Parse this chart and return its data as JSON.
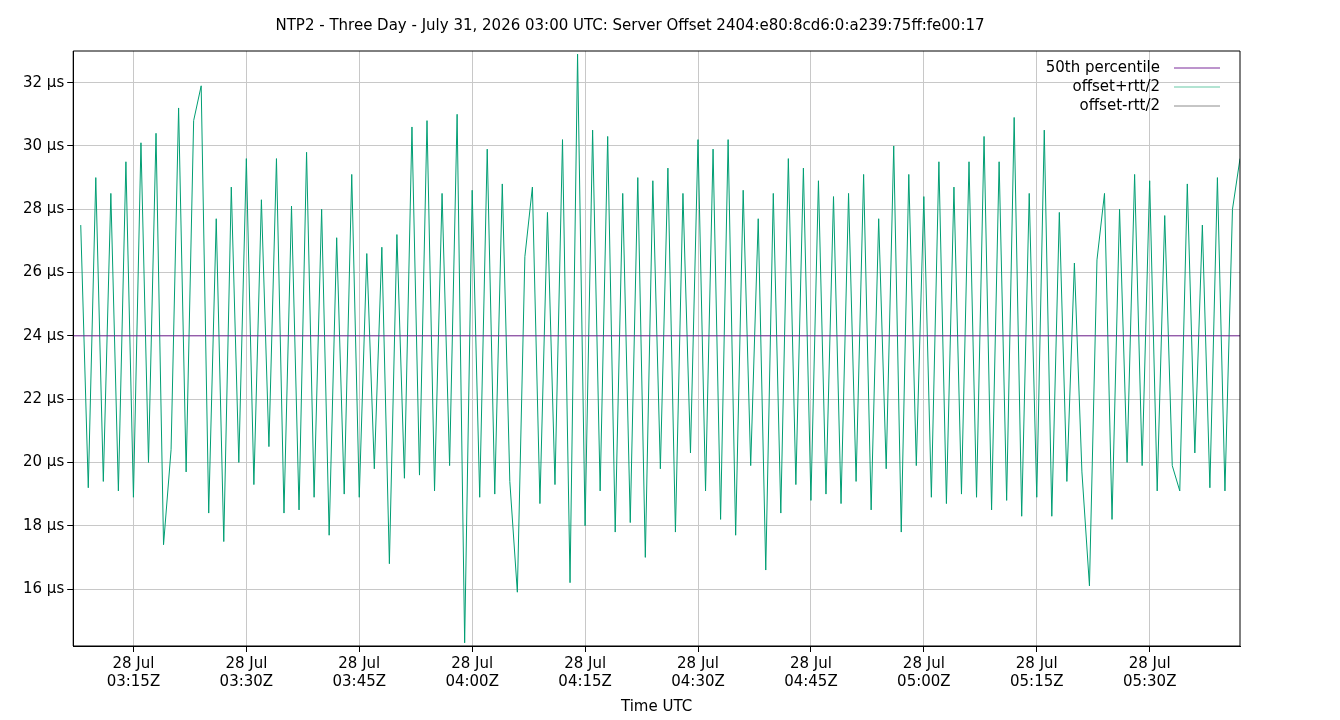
{
  "chart_data": {
    "type": "line",
    "title": "NTP2 - Three Day - July 31, 2026 03:00 UTC: Server Offset 2404:e80:8cd6:0:a239:75ff:fe00:17",
    "xlabel": "Time UTC",
    "xlim": [
      "2026-07-28T03:07",
      "2026-07-28T05:42"
    ],
    "xticks": [
      {
        "value": "2026-07-28T03:15",
        "label": "28 Jul\n03:15Z"
      },
      {
        "value": "2026-07-28T03:30",
        "label": "28 Jul\n03:30Z"
      },
      {
        "value": "2026-07-28T03:45",
        "label": "28 Jul\n03:45Z"
      },
      {
        "value": "2026-07-28T04:00",
        "label": "28 Jul\n04:00Z"
      },
      {
        "value": "2026-07-28T04:15",
        "label": "28 Jul\n04:15Z"
      },
      {
        "value": "2026-07-28T04:30",
        "label": "28 Jul\n04:30Z"
      },
      {
        "value": "2026-07-28T04:45",
        "label": "28 Jul\n04:45Z"
      },
      {
        "value": "2026-07-28T05:00",
        "label": "28 Jul\n05:00Z"
      },
      {
        "value": "2026-07-28T05:15",
        "label": "28 Jul\n05:15Z"
      },
      {
        "value": "2026-07-28T05:30",
        "label": "28 Jul\n05:30Z"
      }
    ],
    "ylim": [
      14.2,
      33
    ],
    "yticks": [
      {
        "value": 16,
        "label": "16 µs"
      },
      {
        "value": 18,
        "label": "18 µs"
      },
      {
        "value": 20,
        "label": "20 µs"
      },
      {
        "value": 22,
        "label": "22 µs"
      },
      {
        "value": 24,
        "label": "24 µs"
      },
      {
        "value": 26,
        "label": "26 µs"
      },
      {
        "value": 28,
        "label": "28 µs"
      },
      {
        "value": 30,
        "label": "30 µs"
      },
      {
        "value": 32,
        "label": "32 µs"
      }
    ],
    "grid": true,
    "legend": "top right",
    "marker": "none",
    "line_style": "solid",
    "x": [
      "2026-07-28T03:08",
      "2026-07-28T03:09",
      "2026-07-28T03:10",
      "2026-07-28T03:11",
      "2026-07-28T03:12",
      "2026-07-28T03:13",
      "2026-07-28T03:14",
      "2026-07-28T03:15",
      "2026-07-28T03:16",
      "2026-07-28T03:17",
      "2026-07-28T03:18",
      "2026-07-28T03:19",
      "2026-07-28T03:20",
      "2026-07-28T03:21",
      "2026-07-28T03:22",
      "2026-07-28T03:23",
      "2026-07-28T03:24",
      "2026-07-28T03:25",
      "2026-07-28T03:26",
      "2026-07-28T03:27",
      "2026-07-28T03:28",
      "2026-07-28T03:29",
      "2026-07-28T03:30",
      "2026-07-28T03:31",
      "2026-07-28T03:32",
      "2026-07-28T03:33",
      "2026-07-28T03:34",
      "2026-07-28T03:35",
      "2026-07-28T03:36",
      "2026-07-28T03:37",
      "2026-07-28T03:38",
      "2026-07-28T03:39",
      "2026-07-28T03:40",
      "2026-07-28T03:41",
      "2026-07-28T03:42",
      "2026-07-28T03:43",
      "2026-07-28T03:44",
      "2026-07-28T03:45",
      "2026-07-28T03:46",
      "2026-07-28T03:47",
      "2026-07-28T03:48",
      "2026-07-28T03:49",
      "2026-07-28T03:50",
      "2026-07-28T03:51",
      "2026-07-28T03:52",
      "2026-07-28T03:53",
      "2026-07-28T03:54",
      "2026-07-28T03:55",
      "2026-07-28T03:56",
      "2026-07-28T03:57",
      "2026-07-28T03:58",
      "2026-07-28T03:59",
      "2026-07-28T04:00",
      "2026-07-28T04:01",
      "2026-07-28T04:02",
      "2026-07-28T04:03",
      "2026-07-28T04:04",
      "2026-07-28T04:05",
      "2026-07-28T04:06",
      "2026-07-28T04:07",
      "2026-07-28T04:08",
      "2026-07-28T04:09",
      "2026-07-28T04:10",
      "2026-07-28T04:11",
      "2026-07-28T04:12",
      "2026-07-28T04:13",
      "2026-07-28T04:14",
      "2026-07-28T04:15",
      "2026-07-28T04:16",
      "2026-07-28T04:17",
      "2026-07-28T04:18",
      "2026-07-28T04:19",
      "2026-07-28T04:20",
      "2026-07-28T04:21",
      "2026-07-28T04:22",
      "2026-07-28T04:23",
      "2026-07-28T04:24",
      "2026-07-28T04:25",
      "2026-07-28T04:26",
      "2026-07-28T04:27",
      "2026-07-28T04:28",
      "2026-07-28T04:29",
      "2026-07-28T04:30",
      "2026-07-28T04:31",
      "2026-07-28T04:32",
      "2026-07-28T04:33",
      "2026-07-28T04:34",
      "2026-07-28T04:35",
      "2026-07-28T04:36",
      "2026-07-28T04:37",
      "2026-07-28T04:38",
      "2026-07-28T04:39",
      "2026-07-28T04:40",
      "2026-07-28T04:41",
      "2026-07-28T04:42",
      "2026-07-28T04:43",
      "2026-07-28T04:44",
      "2026-07-28T04:45",
      "2026-07-28T04:46",
      "2026-07-28T04:47",
      "2026-07-28T04:48",
      "2026-07-28T04:49",
      "2026-07-28T04:50",
      "2026-07-28T04:51",
      "2026-07-28T04:52",
      "2026-07-28T04:53",
      "2026-07-28T04:54",
      "2026-07-28T04:55",
      "2026-07-28T04:56",
      "2026-07-28T04:57",
      "2026-07-28T04:58",
      "2026-07-28T04:59",
      "2026-07-28T05:00",
      "2026-07-28T05:01",
      "2026-07-28T05:02",
      "2026-07-28T05:03",
      "2026-07-28T05:04",
      "2026-07-28T05:05",
      "2026-07-28T05:06",
      "2026-07-28T05:07",
      "2026-07-28T05:08",
      "2026-07-28T05:09",
      "2026-07-28T05:10",
      "2026-07-28T05:11",
      "2026-07-28T05:12",
      "2026-07-28T05:13",
      "2026-07-28T05:14",
      "2026-07-28T05:15",
      "2026-07-28T05:16",
      "2026-07-28T05:17",
      "2026-07-28T05:18",
      "2026-07-28T05:19",
      "2026-07-28T05:20",
      "2026-07-28T05:21",
      "2026-07-28T05:22",
      "2026-07-28T05:23",
      "2026-07-28T05:24",
      "2026-07-28T05:25",
      "2026-07-28T05:26",
      "2026-07-28T05:27",
      "2026-07-28T05:28",
      "2026-07-28T05:29",
      "2026-07-28T05:30",
      "2026-07-28T05:31",
      "2026-07-28T05:32",
      "2026-07-28T05:33",
      "2026-07-28T05:34",
      "2026-07-28T05:35",
      "2026-07-28T05:36",
      "2026-07-28T05:37",
      "2026-07-28T05:38",
      "2026-07-28T05:39",
      "2026-07-28T05:40",
      "2026-07-28T05:41",
      "2026-07-28T05:42"
    ],
    "series": [
      {
        "name": "50th percentile",
        "color": "#7a2a9a",
        "x": [
          "2026-07-28T03:07",
          "2026-07-28T05:42"
        ],
        "values": [
          24,
          24
        ]
      },
      {
        "color": "#009e73",
        "values": [
          27.5,
          19.2,
          29.0,
          19.4,
          28.5,
          19.1,
          29.5,
          18.9,
          30.1,
          20.0,
          30.4,
          17.4,
          20.4,
          31.2,
          19.7,
          30.8,
          31.9,
          18.4,
          27.7,
          17.5,
          28.7,
          20.0,
          29.6,
          19.3,
          28.3,
          20.5,
          29.6,
          18.4,
          28.1,
          18.5,
          29.8,
          18.9,
          28.0,
          17.7,
          27.1,
          19.0,
          29.1,
          18.9,
          26.6,
          19.8,
          26.8,
          16.8,
          27.2,
          19.5,
          30.6,
          19.6,
          30.8,
          19.1,
          28.5,
          19.9,
          31.0,
          14.3,
          28.6,
          18.9,
          29.9,
          19.0,
          28.8,
          19.4,
          15.9,
          26.5,
          28.7,
          18.7,
          27.9,
          19.3,
          30.2,
          16.2,
          32.9,
          18.0,
          30.5,
          19.1,
          30.3,
          17.8,
          28.5,
          18.1,
          29.0,
          17.0,
          28.9,
          19.8,
          29.3,
          17.8,
          28.5,
          20.3,
          30.2,
          19.1,
          29.9,
          18.2,
          30.2,
          17.7,
          28.6,
          19.9,
          27.7,
          16.6,
          28.5,
          18.4,
          29.6,
          19.3,
          29.3,
          18.8,
          28.9,
          19.0,
          28.4,
          18.7,
          28.5,
          19.4,
          29.1,
          18.5,
          27.7,
          19.8,
          30.0,
          17.8,
          29.1,
          19.9,
          28.4,
          18.9,
          29.5,
          18.7,
          28.7,
          19.0,
          29.5,
          18.9,
          30.3,
          18.5,
          29.5,
          18.8,
          30.9,
          18.3,
          28.5,
          18.9,
          30.5,
          18.3,
          27.9,
          19.4,
          26.3,
          19.7,
          16.1,
          26.4,
          28.5,
          18.2,
          28.0,
          20.0,
          29.1,
          19.9,
          28.9,
          19.1,
          27.8,
          19.9,
          19.1,
          28.8,
          20.3,
          27.5,
          19.2,
          29.0,
          19.1,
          28.0,
          29.6
        ]
      },
      {
        "name": "offset+rtt/2",
        "color": "#66c9a6",
        "values": [
          null,
          null,
          null,
          null,
          null,
          null,
          null,
          null,
          null,
          null,
          null,
          null,
          null,
          null,
          null,
          null,
          null,
          null,
          null,
          null,
          null,
          null,
          null,
          null,
          null,
          null,
          null,
          null,
          null,
          null,
          null,
          null,
          null,
          null,
          null,
          null,
          null,
          null,
          null,
          null,
          null,
          null,
          null,
          null,
          null,
          null,
          null,
          null,
          null,
          null,
          null,
          null,
          null,
          null,
          null,
          null,
          null,
          null,
          null,
          null,
          null,
          null,
          null,
          null,
          null,
          null,
          null,
          null,
          null,
          null,
          null,
          null,
          null,
          null,
          null,
          null,
          null,
          null,
          null,
          null,
          null,
          null,
          null,
          null,
          null,
          null,
          null,
          null,
          null,
          null,
          null,
          null,
          null,
          null,
          null,
          null,
          null,
          null,
          null,
          null,
          null,
          null,
          null,
          null,
          null,
          null,
          null,
          null,
          null,
          null,
          null,
          null,
          null,
          null,
          null,
          null,
          null,
          null,
          null,
          null,
          null,
          null,
          null,
          null,
          null,
          null,
          null,
          null,
          null,
          null,
          null,
          null,
          null,
          null,
          null,
          null,
          null,
          null,
          null,
          null,
          null,
          null,
          null,
          null,
          null,
          null,
          null,
          null,
          null,
          null,
          null,
          null,
          null,
          null,
          null
        ]
      },
      {
        "name": "offset-rtt/2",
        "color": "#8c8c8c",
        "values": [
          null,
          null,
          null,
          null,
          null,
          null,
          null,
          null,
          null,
          null,
          null,
          null,
          null,
          null,
          null,
          null,
          null,
          null,
          null,
          null,
          null,
          null,
          null,
          null,
          null,
          null,
          null,
          null,
          null,
          null,
          null,
          null,
          null,
          null,
          null,
          null,
          null,
          null,
          null,
          null,
          null,
          null,
          null,
          null,
          null,
          null,
          null,
          null,
          null,
          null,
          null,
          null,
          null,
          null,
          null,
          null,
          null,
          null,
          null,
          null,
          null,
          null,
          null,
          null,
          null,
          null,
          null,
          null,
          null,
          null,
          null,
          null,
          null,
          null,
          null,
          null,
          null,
          null,
          null,
          null,
          null,
          null,
          null,
          null,
          null,
          null,
          null,
          null,
          null,
          null,
          null,
          null,
          null,
          null,
          null,
          null,
          null,
          null,
          null,
          null,
          null,
          null,
          null,
          null,
          null,
          null,
          null,
          null,
          null,
          null,
          null,
          null,
          null,
          null,
          null,
          null,
          null,
          null,
          null,
          null,
          null,
          null,
          null,
          null,
          null,
          null,
          null,
          null,
          null,
          null,
          null,
          null,
          null,
          null,
          null,
          null,
          null,
          null,
          null,
          null,
          null,
          null,
          null,
          null,
          null,
          null,
          null,
          null,
          null,
          null,
          null,
          null,
          null,
          null,
          null
        ]
      }
    ]
  }
}
